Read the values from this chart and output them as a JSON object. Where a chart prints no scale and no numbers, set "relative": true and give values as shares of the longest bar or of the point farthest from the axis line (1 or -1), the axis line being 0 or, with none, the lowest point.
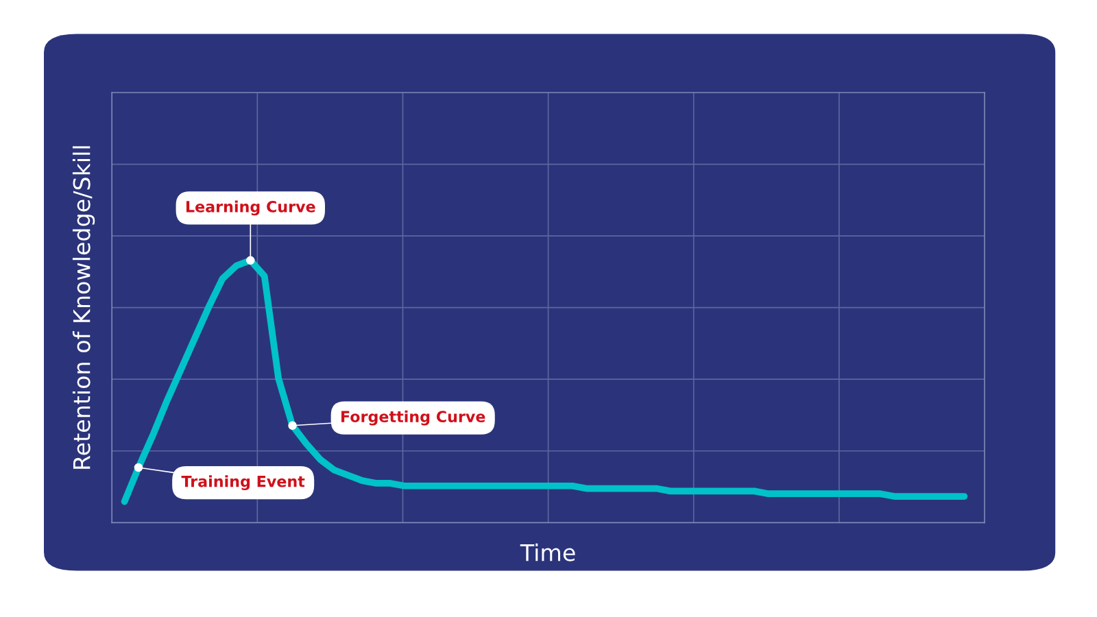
{
  "chart_data": {
    "type": "line",
    "relative": true,
    "xlabel": "Time",
    "ylabel": "Retention of Knowledge/Skill",
    "categories": [
      null,
      null,
      null,
      null,
      null,
      null,
      null,
      null,
      null,
      null,
      null,
      null,
      null,
      null,
      null,
      null,
      null,
      null,
      null,
      null,
      null,
      null,
      null,
      null,
      null,
      null,
      null,
      null,
      null,
      null,
      null,
      null,
      null,
      null,
      null,
      null,
      null,
      null,
      null,
      null,
      null,
      null,
      null,
      null,
      null,
      null,
      null,
      null,
      null,
      null,
      null,
      null,
      null,
      null,
      null,
      null,
      null,
      null,
      null,
      null,
      null
    ],
    "tick_labels": false,
    "grid": true,
    "marker": "none",
    "line_style": "solid",
    "series": [
      {
        "color": "#00c2c8",
        "values": [
          0.08,
          0.21,
          0.33,
          0.46,
          0.58,
          0.7,
          0.82,
          0.93,
          0.98,
          1.0,
          0.94,
          0.55,
          0.37,
          0.3,
          0.24,
          0.2,
          0.18,
          0.16,
          0.15,
          0.15,
          0.14,
          0.14,
          0.14,
          0.14,
          0.14,
          0.14,
          0.14,
          0.14,
          0.14,
          0.14,
          0.14,
          0.14,
          0.14,
          0.13,
          0.13,
          0.13,
          0.13,
          0.13,
          0.13,
          0.12,
          0.12,
          0.12,
          0.12,
          0.12,
          0.12,
          0.12,
          0.11,
          0.11,
          0.11,
          0.11,
          0.11,
          0.11,
          0.11,
          0.11,
          0.11,
          0.1,
          0.1,
          0.1,
          0.1,
          0.1,
          0.1
        ]
      }
    ],
    "annotations": [
      "Training Event",
      "Learning Curve",
      "Forgetting Curve"
    ]
  }
}
